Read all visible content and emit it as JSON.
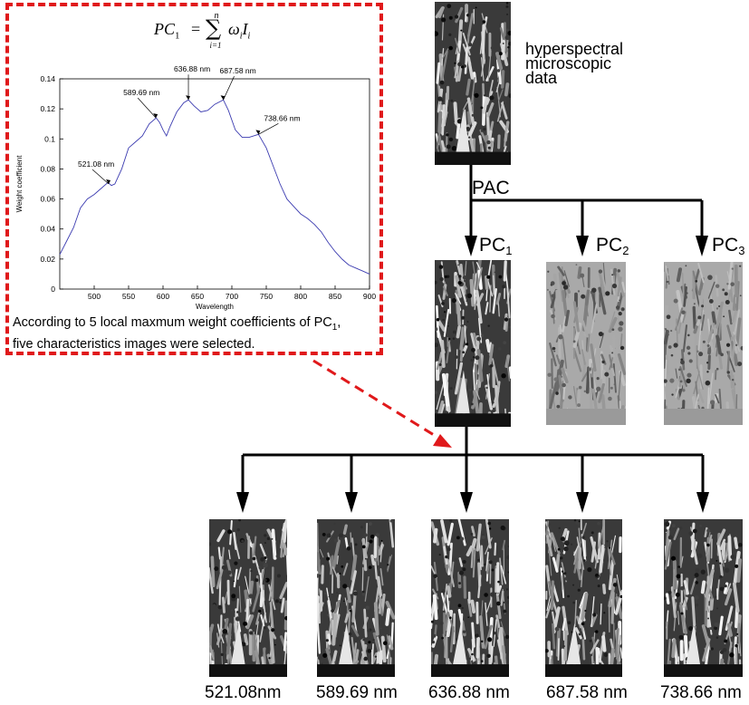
{
  "top_image": {
    "label": "hyperspectral microscopic data",
    "label_lines": [
      "hyperspectral",
      "microscopic",
      "data"
    ]
  },
  "pac_label": "PAC",
  "pcs": [
    {
      "name": "PC",
      "sub": "1",
      "tone": "dark"
    },
    {
      "name": "PC",
      "sub": "2",
      "tone": "light"
    },
    {
      "name": "PC",
      "sub": "3",
      "tone": "light"
    }
  ],
  "bottom_images": [
    {
      "label": "521.08nm"
    },
    {
      "label": "589.69 nm"
    },
    {
      "label": "636.88 nm"
    },
    {
      "label": "687.58 nm"
    },
    {
      "label": "738.66 nm"
    }
  ],
  "inset": {
    "formula": {
      "lhs": "PC",
      "lhs_sub": "1",
      "sum_top": "n",
      "sum_bottom": "i=1",
      "term": "ω",
      "term_sub": "i",
      "term2": "I",
      "term2_sub": "i"
    },
    "caption_line1": "According to 5 local maxmum weight coefficients of PC",
    "caption_line1_sub": "1",
    "caption_line1_end": ",",
    "caption_line2": "five characteristics images  were selected.",
    "border_color": "#e0191b",
    "arrow_color": "#e0191b"
  },
  "chart_data": {
    "type": "line",
    "title": "",
    "xlabel": "Wavelength",
    "ylabel": "Weight coefficient",
    "xlim": [
      450,
      900
    ],
    "ylim": [
      0,
      0.14
    ],
    "xticks": [
      500,
      550,
      600,
      650,
      700,
      750,
      800,
      850,
      900
    ],
    "yticks": [
      0,
      0.02,
      0.04,
      0.06,
      0.08,
      0.1,
      0.12,
      0.14
    ],
    "ytick_labels": [
      "0",
      "0.02",
      "0.04",
      "0.06",
      "0.08",
      "0.1",
      "0.12",
      "0.14"
    ],
    "grid": false,
    "line_color": "#3b3bb0",
    "series": [
      {
        "x": [
          450,
          460,
          470,
          480,
          490,
          500,
          510,
          520,
          525,
          530,
          540,
          550,
          560,
          570,
          580,
          590,
          595,
          600,
          605,
          610,
          620,
          630,
          636.88,
          645,
          655,
          665,
          675,
          687.58,
          695,
          705,
          715,
          725,
          738.66,
          750,
          760,
          770,
          780,
          790,
          800,
          810,
          820,
          830,
          840,
          850,
          860,
          870,
          880,
          890,
          900
        ],
        "y": [
          0.023,
          0.032,
          0.041,
          0.054,
          0.06,
          0.063,
          0.067,
          0.071,
          0.069,
          0.07,
          0.08,
          0.094,
          0.098,
          0.102,
          0.11,
          0.114,
          0.111,
          0.106,
          0.102,
          0.108,
          0.118,
          0.124,
          0.126,
          0.122,
          0.118,
          0.119,
          0.123,
          0.126,
          0.119,
          0.106,
          0.101,
          0.101,
          0.103,
          0.094,
          0.082,
          0.07,
          0.06,
          0.055,
          0.05,
          0.047,
          0.043,
          0.038,
          0.031,
          0.025,
          0.02,
          0.016,
          0.014,
          0.012,
          0.01
        ]
      }
    ],
    "annotations": [
      {
        "text": "521.08 nm",
        "x": 521.08,
        "y": 0.07
      },
      {
        "text": "589.69 nm",
        "x": 589.69,
        "y": 0.114
      },
      {
        "text": "636.88 nm",
        "x": 636.88,
        "y": 0.126
      },
      {
        "text": "687.58 nm",
        "x": 687.58,
        "y": 0.126
      },
      {
        "text": "738.66 nm",
        "x": 738.66,
        "y": 0.103
      }
    ]
  }
}
